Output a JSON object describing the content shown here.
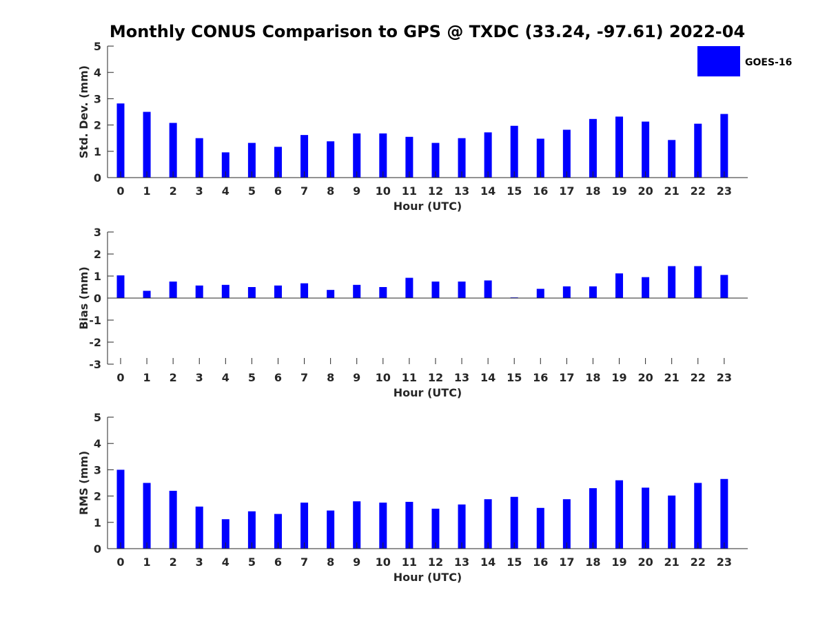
{
  "figure": {
    "title": "Monthly CONUS Comparison to GPS @ TXDC (33.24, -97.61) 2022-04",
    "legend": {
      "label": "GOES-16",
      "color": "#0000ff",
      "placement": "top-right"
    }
  },
  "chart_data": [
    {
      "type": "bar",
      "title": "",
      "xlabel": "Hour (UTC)",
      "ylabel": "Std. Dev. (mm)",
      "ylim": [
        0,
        5
      ],
      "yticks": [
        0,
        1,
        2,
        3,
        4,
        5
      ],
      "categories": [
        "0",
        "1",
        "2",
        "3",
        "4",
        "5",
        "6",
        "7",
        "8",
        "9",
        "10",
        "11",
        "12",
        "13",
        "14",
        "15",
        "16",
        "17",
        "18",
        "19",
        "20",
        "21",
        "22",
        "23"
      ],
      "series": [
        {
          "name": "GOES-16",
          "color": "#0000ff",
          "values": [
            2.82,
            2.5,
            2.08,
            1.5,
            0.96,
            1.32,
            1.17,
            1.62,
            1.38,
            1.68,
            1.68,
            1.55,
            1.32,
            1.5,
            1.72,
            1.97,
            1.48,
            1.82,
            2.23,
            2.32,
            2.13,
            1.43,
            2.05,
            2.42
          ]
        }
      ]
    },
    {
      "type": "bar",
      "title": "",
      "xlabel": "Hour (UTC)",
      "ylabel": "Bias (mm)",
      "ylim": [
        -3,
        3
      ],
      "yticks": [
        -3,
        -2,
        -1,
        0,
        1,
        2,
        3
      ],
      "categories": [
        "0",
        "1",
        "2",
        "3",
        "4",
        "5",
        "6",
        "7",
        "8",
        "9",
        "10",
        "11",
        "12",
        "13",
        "14",
        "15",
        "16",
        "17",
        "18",
        "19",
        "20",
        "21",
        "22",
        "23"
      ],
      "series": [
        {
          "name": "GOES-16",
          "color": "#0000ff",
          "values": [
            1.03,
            0.33,
            0.75,
            0.57,
            0.6,
            0.5,
            0.57,
            0.67,
            0.37,
            0.6,
            0.5,
            0.92,
            0.75,
            0.75,
            0.8,
            0.03,
            0.42,
            0.53,
            0.53,
            1.12,
            0.95,
            1.45,
            1.45,
            1.05
          ]
        }
      ]
    },
    {
      "type": "bar",
      "title": "",
      "xlabel": "Hour (UTC)",
      "ylabel": "RMS (mm)",
      "ylim": [
        0,
        5
      ],
      "yticks": [
        0,
        1,
        2,
        3,
        4,
        5
      ],
      "categories": [
        "0",
        "1",
        "2",
        "3",
        "4",
        "5",
        "6",
        "7",
        "8",
        "9",
        "10",
        "11",
        "12",
        "13",
        "14",
        "15",
        "16",
        "17",
        "18",
        "19",
        "20",
        "21",
        "22",
        "23"
      ],
      "series": [
        {
          "name": "GOES-16",
          "color": "#0000ff",
          "values": [
            3.0,
            2.5,
            2.2,
            1.6,
            1.12,
            1.42,
            1.32,
            1.75,
            1.45,
            1.8,
            1.75,
            1.78,
            1.52,
            1.68,
            1.88,
            1.97,
            1.55,
            1.88,
            2.3,
            2.6,
            2.32,
            2.02,
            2.5,
            2.65
          ]
        }
      ]
    }
  ]
}
